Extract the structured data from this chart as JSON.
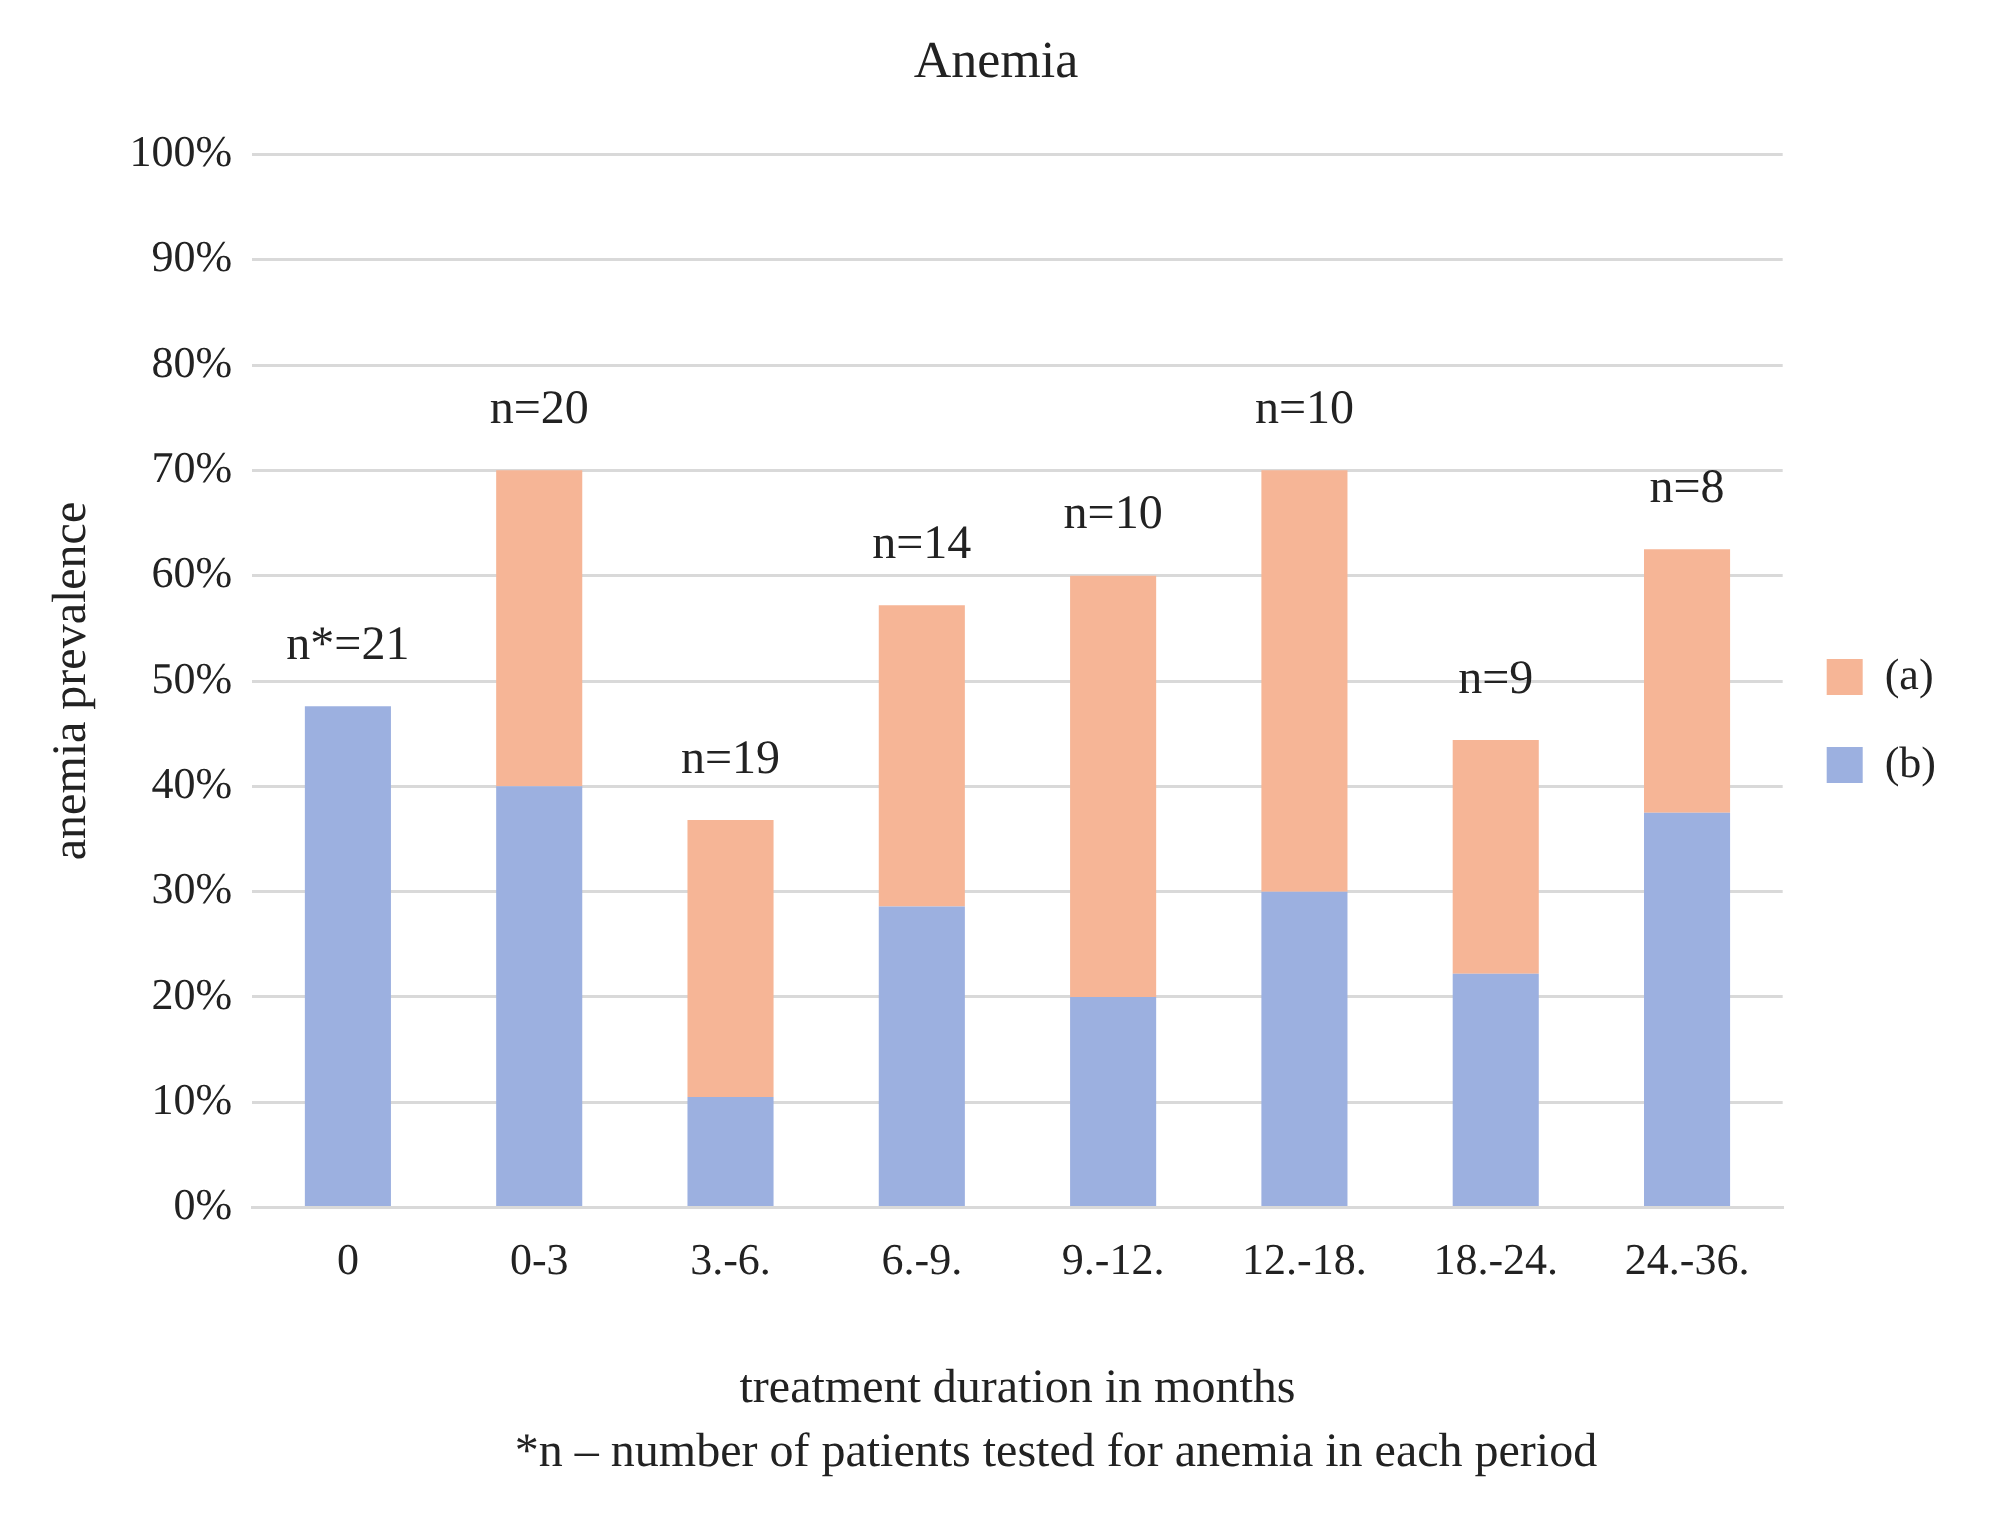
{
  "chart_data": {
    "type": "bar",
    "title": "Anemia",
    "xlabel": "treatment duration in months",
    "ylabel": "anemia prevalence",
    "categories": [
      "0",
      "0-3",
      "3.-6.",
      "6.-9.",
      "9.-12.",
      "12.-18.",
      "18.-24.",
      "24.-36."
    ],
    "stacked": true,
    "series": [
      {
        "name": "(b)",
        "color": "#9cb0e0",
        "values": [
          47.6,
          40,
          10.5,
          28.6,
          20,
          30,
          22.2,
          37.5
        ]
      },
      {
        "name": "(a)",
        "color": "#f6b596",
        "values": [
          0,
          30,
          26.3,
          28.6,
          40,
          40,
          22.2,
          25
        ]
      }
    ],
    "ylim": [
      0,
      100
    ],
    "yticks": [
      {
        "value": 0,
        "label": "0%"
      },
      {
        "value": 10,
        "label": "10%"
      },
      {
        "value": 20,
        "label": "20%"
      },
      {
        "value": 30,
        "label": "30%"
      },
      {
        "value": 40,
        "label": "40%"
      },
      {
        "value": 50,
        "label": "50%"
      },
      {
        "value": 60,
        "label": "60%"
      },
      {
        "value": 70,
        "label": "70%"
      },
      {
        "value": 80,
        "label": "80%"
      },
      {
        "value": 90,
        "label": "90%"
      },
      {
        "value": 100,
        "label": "100%"
      }
    ],
    "grid": "y",
    "legend": "right",
    "annotations": [
      {
        "text": "n*=21",
        "x": "0",
        "y": 47.6
      },
      {
        "text": "n=20",
        "x": "0-3",
        "y": 70
      },
      {
        "text": "n=19",
        "x": "3.-6.",
        "y": 36.8
      },
      {
        "text": "n=14",
        "x": "6.-9.",
        "y": 57.2
      },
      {
        "text": "n=10",
        "x": "9.-12.",
        "y": 60
      },
      {
        "text": "n=10",
        "x": "12.-18.",
        "y": 70
      },
      {
        "text": "n=9",
        "x": "18.-24.",
        "y": 44.4
      },
      {
        "text": "n=8",
        "x": "24.-36.",
        "y": 62.5
      },
      "*n – number of patients tested for anemia in each period"
    ]
  }
}
